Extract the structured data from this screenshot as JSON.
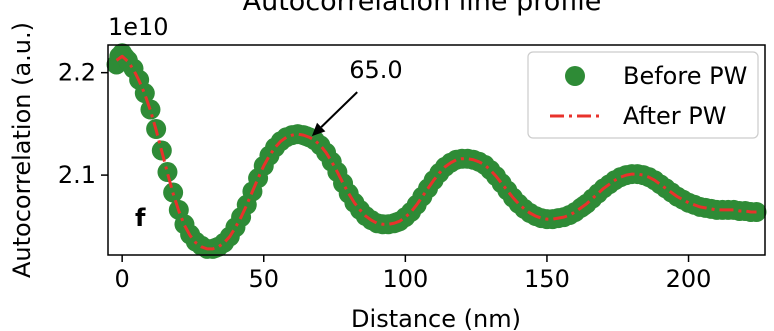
{
  "chart_data": {
    "type": "line",
    "title": "Autocorrelation line profile",
    "xlabel": "Distance (nm)",
    "ylabel": "Autocorrelation (a.u.)",
    "y_offset_label": "1e10",
    "xlim": [
      -5,
      227
    ],
    "ylim": [
      2.022,
      2.227
    ],
    "x_ticks": [
      0,
      50,
      100,
      150,
      200
    ],
    "x_tick_labels": [
      "0",
      "50",
      "100",
      "150",
      "200"
    ],
    "y_ticks": [
      2.1,
      2.2
    ],
    "y_tick_labels": [
      "2.1",
      "2.2"
    ],
    "grid": false,
    "legend": {
      "placement": "top-right",
      "entries": [
        "Before PW",
        "After PW"
      ]
    },
    "panel_label": "f",
    "annotation": {
      "text": "65.0",
      "target": [
        67,
        2.138
      ],
      "text_anchor": [
        83,
        2.181
      ]
    },
    "colors": {
      "before": "#2e8b36",
      "after": "#e8322b"
    },
    "series": [
      {
        "name": "Before PW",
        "style": "markers",
        "x": [
          -2,
          -1,
          0,
          1,
          2,
          4,
          6,
          8,
          10,
          12,
          14,
          16,
          18,
          20,
          22,
          24,
          26,
          28,
          30,
          32,
          33,
          34,
          36,
          38,
          40,
          42,
          44,
          46,
          48,
          50,
          52,
          54,
          56,
          58,
          60,
          62,
          64,
          65,
          66,
          68,
          70,
          72,
          74,
          76,
          78,
          80,
          82,
          84,
          86,
          88,
          90,
          92,
          94,
          96,
          97,
          98,
          100,
          102,
          104,
          106,
          108,
          110,
          112,
          114,
          116,
          118,
          120,
          122,
          124,
          126,
          128,
          130,
          132,
          134,
          136,
          138,
          140,
          142,
          144,
          146,
          148,
          150,
          152,
          154,
          156,
          158,
          160,
          162,
          163,
          164,
          166,
          168,
          170,
          172,
          174,
          176,
          178,
          180,
          182,
          184,
          186,
          188,
          190,
          192,
          194,
          196,
          198,
          200,
          202,
          204,
          206,
          208,
          210,
          212,
          214,
          216,
          218,
          220,
          222,
          224
        ],
        "y": [
          2.208,
          2.216,
          2.219,
          2.215,
          2.212,
          2.204,
          2.193,
          2.18,
          2.164,
          2.145,
          2.124,
          2.103,
          2.083,
          2.066,
          2.052,
          2.042,
          2.035,
          2.031,
          2.028,
          2.028,
          2.029,
          2.03,
          2.034,
          2.04,
          2.049,
          2.059,
          2.071,
          2.084,
          2.097,
          2.109,
          2.119,
          2.127,
          2.133,
          2.137,
          2.139,
          2.14,
          2.139,
          2.138,
          2.137,
          2.134,
          2.129,
          2.122,
          2.113,
          2.103,
          2.092,
          2.082,
          2.073,
          2.066,
          2.06,
          2.056,
          2.053,
          2.052,
          2.052,
          2.053,
          2.054,
          2.055,
          2.059,
          2.064,
          2.071,
          2.079,
          2.087,
          2.095,
          2.102,
          2.108,
          2.112,
          2.115,
          2.116,
          2.116,
          2.115,
          2.113,
          2.11,
          2.105,
          2.099,
          2.092,
          2.085,
          2.078,
          2.072,
          2.067,
          2.063,
          2.06,
          2.058,
          2.057,
          2.057,
          2.058,
          2.059,
          2.061,
          2.064,
          2.068,
          2.07,
          2.072,
          2.077,
          2.082,
          2.087,
          2.091,
          2.095,
          2.098,
          2.1,
          2.101,
          2.101,
          2.1,
          2.098,
          2.095,
          2.091,
          2.087,
          2.083,
          2.079,
          2.076,
          2.073,
          2.071,
          2.069,
          2.068,
          2.067,
          2.066,
          2.066,
          2.066,
          2.066,
          2.065,
          2.065,
          2.064,
          2.064
        ]
      },
      {
        "name": "After PW",
        "style": "dashdot",
        "x": [
          -2,
          0,
          2,
          4,
          6,
          8,
          10,
          12,
          14,
          16,
          18,
          20,
          22,
          24,
          26,
          28,
          30,
          32,
          34,
          36,
          38,
          40,
          42,
          44,
          46,
          48,
          50,
          52,
          54,
          56,
          58,
          60,
          62,
          64,
          66,
          68,
          70,
          72,
          74,
          76,
          78,
          80,
          82,
          84,
          86,
          88,
          90,
          92,
          94,
          96,
          98,
          100,
          102,
          104,
          106,
          108,
          110,
          112,
          114,
          116,
          118,
          120,
          122,
          124,
          126,
          128,
          130,
          132,
          134,
          136,
          138,
          140,
          142,
          144,
          146,
          148,
          150,
          152,
          154,
          156,
          158,
          160,
          162,
          164,
          166,
          168,
          170,
          172,
          174,
          176,
          178,
          180,
          182,
          184,
          186,
          188,
          190,
          192,
          194,
          196,
          198,
          200,
          202,
          204,
          206,
          208,
          210,
          212,
          214,
          216,
          218,
          220,
          222,
          224
        ],
        "y": [
          2.212,
          2.216,
          2.211,
          2.203,
          2.192,
          2.179,
          2.163,
          2.144,
          2.123,
          2.102,
          2.082,
          2.065,
          2.051,
          2.041,
          2.034,
          2.03,
          2.028,
          2.028,
          2.03,
          2.034,
          2.04,
          2.049,
          2.059,
          2.071,
          2.084,
          2.097,
          2.109,
          2.119,
          2.127,
          2.133,
          2.137,
          2.139,
          2.14,
          2.139,
          2.137,
          2.134,
          2.129,
          2.122,
          2.113,
          2.103,
          2.092,
          2.082,
          2.073,
          2.066,
          2.06,
          2.056,
          2.053,
          2.052,
          2.052,
          2.053,
          2.055,
          2.059,
          2.064,
          2.071,
          2.079,
          2.087,
          2.095,
          2.102,
          2.108,
          2.112,
          2.115,
          2.116,
          2.116,
          2.115,
          2.113,
          2.11,
          2.105,
          2.099,
          2.092,
          2.085,
          2.078,
          2.072,
          2.067,
          2.063,
          2.06,
          2.058,
          2.057,
          2.057,
          2.058,
          2.059,
          2.061,
          2.064,
          2.068,
          2.072,
          2.077,
          2.082,
          2.087,
          2.091,
          2.095,
          2.098,
          2.1,
          2.101,
          2.101,
          2.1,
          2.098,
          2.095,
          2.091,
          2.087,
          2.083,
          2.079,
          2.076,
          2.073,
          2.071,
          2.069,
          2.068,
          2.067,
          2.066,
          2.066,
          2.066,
          2.066,
          2.065,
          2.065,
          2.064,
          2.064
        ]
      }
    ]
  }
}
